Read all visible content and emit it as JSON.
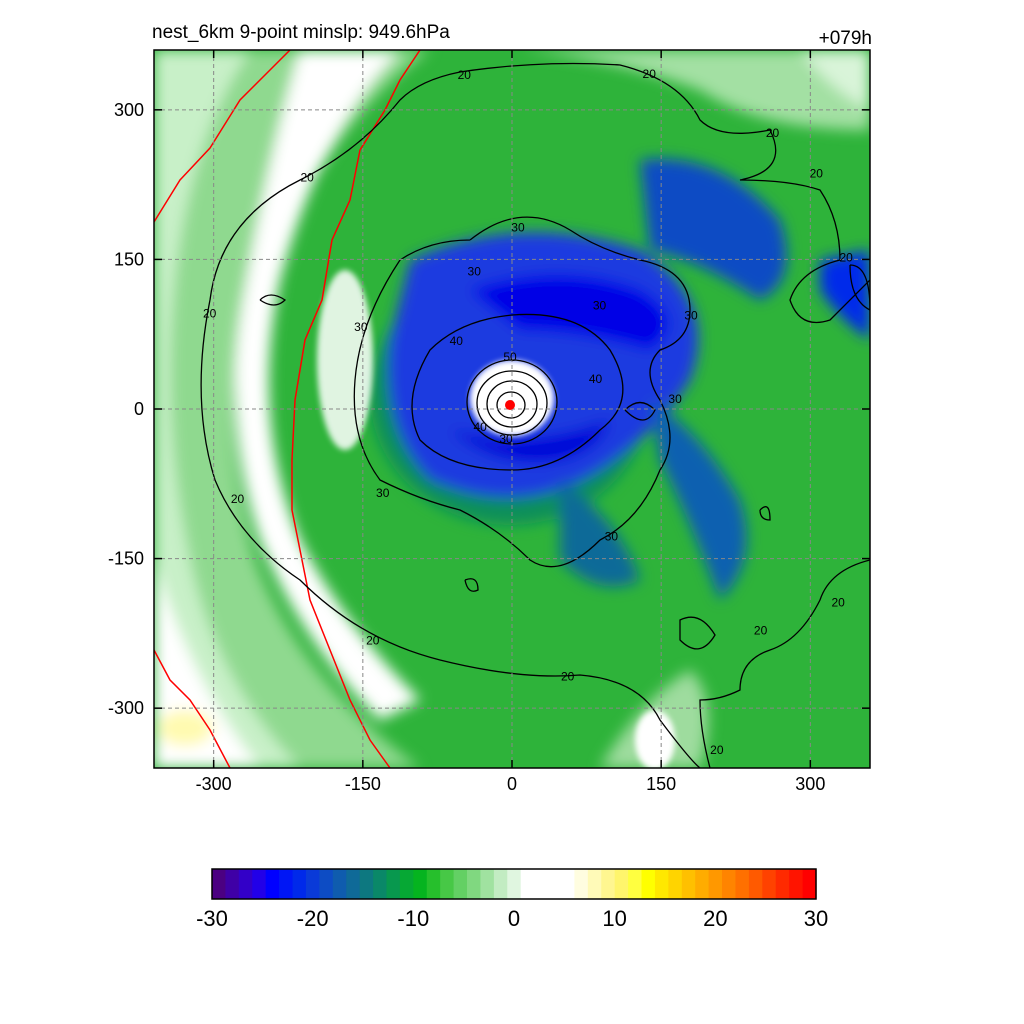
{
  "header": {
    "title": "nest_6km  9-point minslp: 949.6hPa",
    "time_label": "+079h"
  },
  "chart_data": {
    "type": "heatmap",
    "title": "nest_6km  9-point minslp: 949.6hPa",
    "annotation": "+079h",
    "xlabel": "",
    "ylabel": "",
    "xlim": [
      -360,
      360
    ],
    "ylim": [
      -360,
      360
    ],
    "x_ticks": [
      -300,
      -150,
      0,
      150,
      300
    ],
    "y_ticks": [
      300,
      150,
      0,
      -150,
      -300
    ],
    "x_tick_labels": [
      "-300",
      "-150",
      "0",
      "150",
      "300"
    ],
    "y_tick_labels": [
      "300",
      "150",
      "0",
      "-150",
      "-300"
    ],
    "grid": true,
    "center_marker": {
      "x": -2,
      "y": 4,
      "color": "#ff0000"
    },
    "contour_levels": [
      20,
      30,
      40,
      50
    ],
    "contour_labels": [
      {
        "text": "20",
        "x": -48,
        "y": 335
      },
      {
        "text": "20",
        "x": 138,
        "y": 336
      },
      {
        "text": "20",
        "x": 262,
        "y": 277
      },
      {
        "text": "20",
        "x": 306,
        "y": 236
      },
      {
        "text": "20",
        "x": 336,
        "y": 152
      },
      {
        "text": "20",
        "x": -206,
        "y": 232
      },
      {
        "text": "20",
        "x": -304,
        "y": 96
      },
      {
        "text": "20",
        "x": -276,
        "y": -90
      },
      {
        "text": "20",
        "x": -140,
        "y": -232
      },
      {
        "text": "20",
        "x": 56,
        "y": -268
      },
      {
        "text": "20",
        "x": 250,
        "y": -222
      },
      {
        "text": "20",
        "x": 328,
        "y": -194
      },
      {
        "text": "20",
        "x": 206,
        "y": -342
      },
      {
        "text": "30",
        "x": 6,
        "y": 182
      },
      {
        "text": "30",
        "x": -38,
        "y": 138
      },
      {
        "text": "30",
        "x": 88,
        "y": 104
      },
      {
        "text": "30",
        "x": 180,
        "y": 94
      },
      {
        "text": "30",
        "x": -152,
        "y": 82
      },
      {
        "text": "30",
        "x": 164,
        "y": 10
      },
      {
        "text": "30",
        "x": -130,
        "y": -84
      },
      {
        "text": "30",
        "x": 100,
        "y": -128
      },
      {
        "text": "30",
        "x": -6,
        "y": -30
      },
      {
        "text": "40",
        "x": -56,
        "y": 68
      },
      {
        "text": "40",
        "x": 84,
        "y": 30
      },
      {
        "text": "40",
        "x": -32,
        "y": -18
      },
      {
        "text": "50",
        "x": -2,
        "y": 52
      }
    ],
    "colorbar": {
      "min": -30,
      "max": 30,
      "tick_values": [
        -30,
        -20,
        -10,
        0,
        10,
        20,
        30
      ],
      "tick_labels": [
        "-30",
        "-20",
        "-10",
        "0",
        "10",
        "20",
        "30"
      ],
      "colors": [
        "#4b0082",
        "#3f00a6",
        "#3300c8",
        "#2200e8",
        "#0000ff",
        "#0016f5",
        "#0029ea",
        "#0a3ad8",
        "#0d4cc4",
        "#0f5cae",
        "#0f6a98",
        "#0d7880",
        "#0a8868",
        "#08984e",
        "#06a834",
        "#05b41f",
        "#26bf2c",
        "#47c846",
        "#63d064",
        "#80d880",
        "#a0e2a0",
        "#c2ecc2",
        "#e0f6e0",
        "#ffffff",
        "#ffffff",
        "#ffffff",
        "#ffffff",
        "#fffde0",
        "#fffab8",
        "#fff690",
        "#fff56c",
        "#ffff40",
        "#ffff00",
        "#ffe800",
        "#ffd400",
        "#ffc000",
        "#ffac00",
        "#ff9800",
        "#ff8400",
        "#ff7000",
        "#ff5a00",
        "#ff4200",
        "#ff2a00",
        "#ff1400",
        "#ff0000"
      ]
    }
  }
}
